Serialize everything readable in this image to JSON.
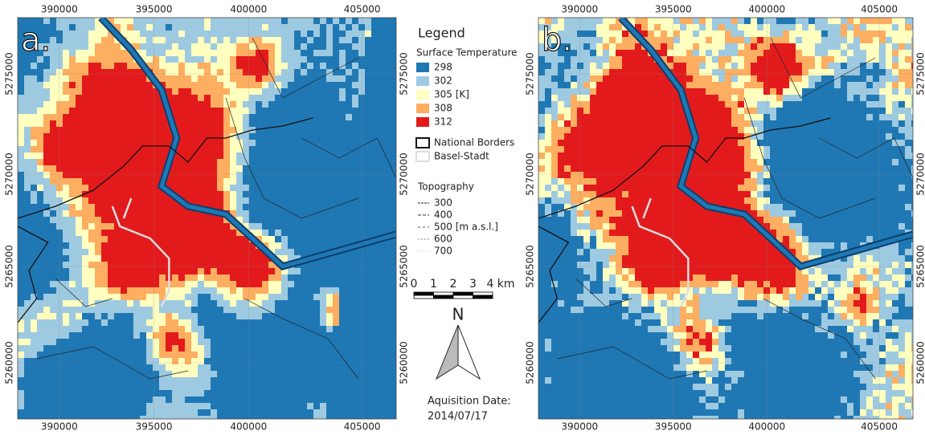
{
  "panels": [
    {
      "label": "a."
    },
    {
      "label": "b."
    }
  ],
  "x_labels": [
    "390000",
    "395000",
    "400000",
    "405000"
  ],
  "y_labels": [
    "5275000",
    "5270000",
    "5265000",
    "5260000"
  ],
  "legend": {
    "title": "Legend",
    "temperature": {
      "title": "Surface Temperature",
      "entries": [
        {
          "label": "298",
          "color": "#1f78b4"
        },
        {
          "label": "302",
          "color": "#9ecae1"
        },
        {
          "label": "305 [K]",
          "color": "#ffffbf"
        },
        {
          "label": "308",
          "color": "#fdae61"
        },
        {
          "label": "312",
          "color": "#e31a1c"
        }
      ]
    },
    "borders": [
      {
        "label": "National Borders",
        "color": "#111111"
      },
      {
        "label": "Basel-Stadt",
        "color": "#dddddd"
      }
    ],
    "topography": {
      "title": "Topography",
      "entries": [
        "300",
        "400",
        "500 [m a.s.l.]",
        "600",
        "700"
      ]
    }
  },
  "scale_bar": [
    "0",
    "1",
    "2",
    "3",
    "4 km"
  ],
  "north": "N",
  "acquisition": {
    "label": "Aquisition Date:",
    "date": "2014/07/17"
  }
}
